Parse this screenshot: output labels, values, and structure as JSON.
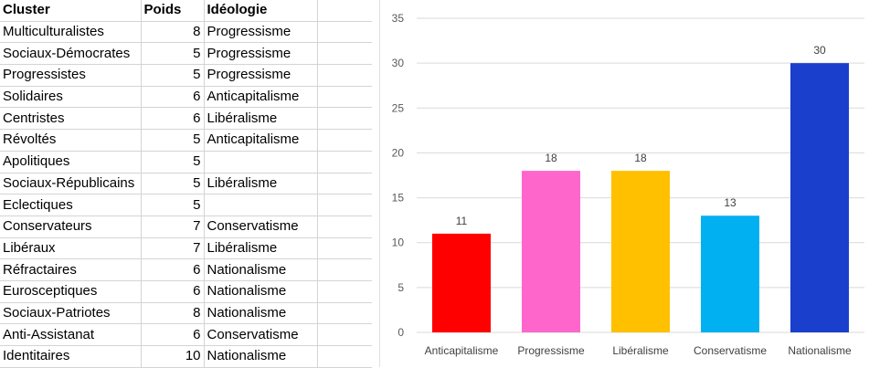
{
  "table": {
    "headers": {
      "cluster": "Cluster",
      "poids": "Poids",
      "ideologie": "Idéologie"
    },
    "rows": [
      {
        "cluster": "Multiculturalistes",
        "poids": "8",
        "ideologie": "Progressisme"
      },
      {
        "cluster": "Sociaux-Démocrates",
        "poids": "5",
        "ideologie": "Progressisme"
      },
      {
        "cluster": "Progressistes",
        "poids": "5",
        "ideologie": "Progressisme"
      },
      {
        "cluster": "Solidaires",
        "poids": "6",
        "ideologie": "Anticapitalisme"
      },
      {
        "cluster": "Centristes",
        "poids": "6",
        "ideologie": "Libéralisme"
      },
      {
        "cluster": "Révoltés",
        "poids": "5",
        "ideologie": "Anticapitalisme"
      },
      {
        "cluster": "Apolitiques",
        "poids": "5",
        "ideologie": ""
      },
      {
        "cluster": "Sociaux-Républicains",
        "poids": "5",
        "ideologie": "Libéralisme"
      },
      {
        "cluster": "Eclectiques",
        "poids": "5",
        "ideologie": ""
      },
      {
        "cluster": "Conservateurs",
        "poids": "7",
        "ideologie": "Conservatisme"
      },
      {
        "cluster": "Libéraux",
        "poids": "7",
        "ideologie": "Libéralisme"
      },
      {
        "cluster": "Réfractaires",
        "poids": "6",
        "ideologie": "Nationalisme"
      },
      {
        "cluster": "Eurosceptiques",
        "poids": "6",
        "ideologie": "Nationalisme"
      },
      {
        "cluster": "Sociaux-Patriotes",
        "poids": "8",
        "ideologie": "Nationalisme"
      },
      {
        "cluster": "Anti-Assistanat",
        "poids": "6",
        "ideologie": "Conservatisme"
      },
      {
        "cluster": "Identitaires",
        "poids": "10",
        "ideologie": "Nationalisme"
      }
    ]
  },
  "chart_data": {
    "type": "bar",
    "categories": [
      "Anticapitalisme",
      "Progressisme",
      "Libéralisme",
      "Conservatisme",
      "Nationalisme"
    ],
    "values": [
      11,
      18,
      18,
      13,
      30
    ],
    "colors": [
      "#ff0000",
      "#ff66cc",
      "#ffc000",
      "#00b0f0",
      "#1a3fcc"
    ],
    "data_labels": [
      "11",
      "18",
      "18",
      "13",
      "30"
    ],
    "ylim": [
      0,
      35
    ],
    "yticks": [
      0,
      5,
      10,
      15,
      20,
      25,
      30,
      35
    ],
    "grid": true,
    "title": "",
    "xlabel": "",
    "ylabel": ""
  }
}
